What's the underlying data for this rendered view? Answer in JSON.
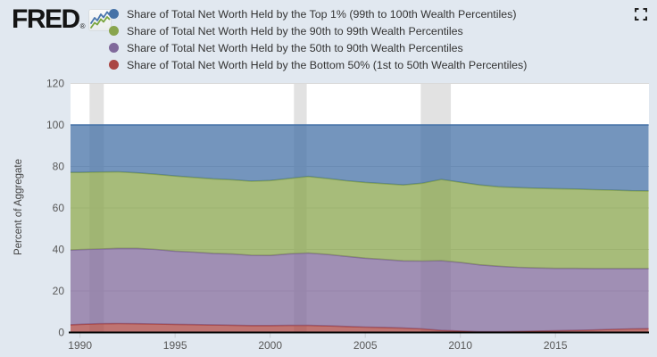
{
  "header": {
    "logo_text": "FRED",
    "registered_mark": "®"
  },
  "legend": {
    "items": [
      {
        "label": "Share of Total Net Worth Held by the Top 1% (99th to 100th Wealth Percentiles)",
        "color": "#4572a7"
      },
      {
        "label": "Share of Total Net Worth Held by the 90th to 99th Wealth Percentiles",
        "color": "#89a54e"
      },
      {
        "label": "Share of Total Net Worth Held by the 50th to 90th Wealth Percentiles",
        "color": "#80699b"
      },
      {
        "label": "Share of Total Net Worth Held by the Bottom 50% (1st to 50th Wealth Percentiles)",
        "color": "#aa4643"
      }
    ]
  },
  "chart_data": {
    "type": "area",
    "stacked": true,
    "title": "",
    "xlabel": "",
    "ylabel": "Percent of Aggregate",
    "ylim": [
      0,
      120
    ],
    "xlim": [
      1989.5,
      2019.92
    ],
    "y_ticks": [
      0,
      20,
      40,
      60,
      80,
      100,
      120
    ],
    "x_ticks": [
      1990,
      1995,
      2000,
      2005,
      2010,
      2015
    ],
    "grid_on": true,
    "grid_color": "#d9d9d9",
    "recession_color": "#e2e2e2",
    "plot_bg": "#ffffff",
    "fill_opacity": 0.75,
    "recessions": [
      [
        1990.5,
        1991.25
      ],
      [
        2001.25,
        2001.92
      ],
      [
        2007.92,
        2009.5
      ]
    ],
    "x": [
      1989.5,
      1990,
      1991,
      1992,
      1993,
      1994,
      1995,
      1996,
      1997,
      1998,
      1999,
      2000,
      2001,
      2002,
      2003,
      2004,
      2005,
      2006,
      2007,
      2008,
      2009,
      2010,
      2011,
      2012,
      2013,
      2014,
      2015,
      2016,
      2017,
      2018,
      2019,
      2019.9
    ],
    "series": [
      {
        "id": "bottom-50",
        "name": "Share of Total Net Worth Held by the Bottom 50% (1st to 50th Wealth Percentiles)",
        "color": "#aa4643",
        "values": [
          3.7,
          3.9,
          4.2,
          4.3,
          4.2,
          4.1,
          3.9,
          3.8,
          3.6,
          3.5,
          3.3,
          3.3,
          3.4,
          3.4,
          3.2,
          2.9,
          2.6,
          2.4,
          2.1,
          1.7,
          1.0,
          0.7,
          0.4,
          0.4,
          0.5,
          0.7,
          0.8,
          1.0,
          1.2,
          1.5,
          1.7,
          1.8
        ]
      },
      {
        "id": "50th-90th",
        "name": "Share of Total Net Worth Held by the 50th to 90th Wealth Percentiles",
        "color": "#80699b",
        "values": [
          36.0,
          36.0,
          36.0,
          36.2,
          36.3,
          35.9,
          35.3,
          34.9,
          34.5,
          34.3,
          33.9,
          33.8,
          34.5,
          34.9,
          34.4,
          33.8,
          33.2,
          32.8,
          32.4,
          32.7,
          33.6,
          33.0,
          32.2,
          31.5,
          30.9,
          30.4,
          30.1,
          29.9,
          29.6,
          29.3,
          29.1,
          29.0
        ]
      },
      {
        "id": "90th-99th",
        "name": "Share of Total Net Worth Held by the 90th to 99th Wealth Percentiles",
        "color": "#89a54e",
        "values": [
          37.4,
          37.2,
          37.1,
          36.9,
          36.4,
          36.2,
          36.2,
          36.0,
          35.9,
          35.8,
          35.7,
          36.1,
          36.3,
          36.9,
          36.6,
          36.4,
          36.5,
          36.5,
          36.6,
          37.5,
          39.1,
          38.7,
          38.5,
          38.3,
          38.4,
          38.4,
          38.4,
          38.2,
          38.0,
          37.8,
          37.5,
          37.4
        ]
      },
      {
        "id": "top-1",
        "name": "Share of Total Net Worth Held by the Top 1% (99th to 100th Wealth Percentiles)",
        "color": "#4572a7",
        "values": [
          22.9,
          22.9,
          22.7,
          22.6,
          23.1,
          23.8,
          24.6,
          25.3,
          26.0,
          26.4,
          27.1,
          26.8,
          25.8,
          24.8,
          25.8,
          26.9,
          27.7,
          28.3,
          28.9,
          28.1,
          26.3,
          27.6,
          28.9,
          29.8,
          30.2,
          30.5,
          30.7,
          30.9,
          31.2,
          31.4,
          31.7,
          31.8
        ]
      }
    ]
  }
}
